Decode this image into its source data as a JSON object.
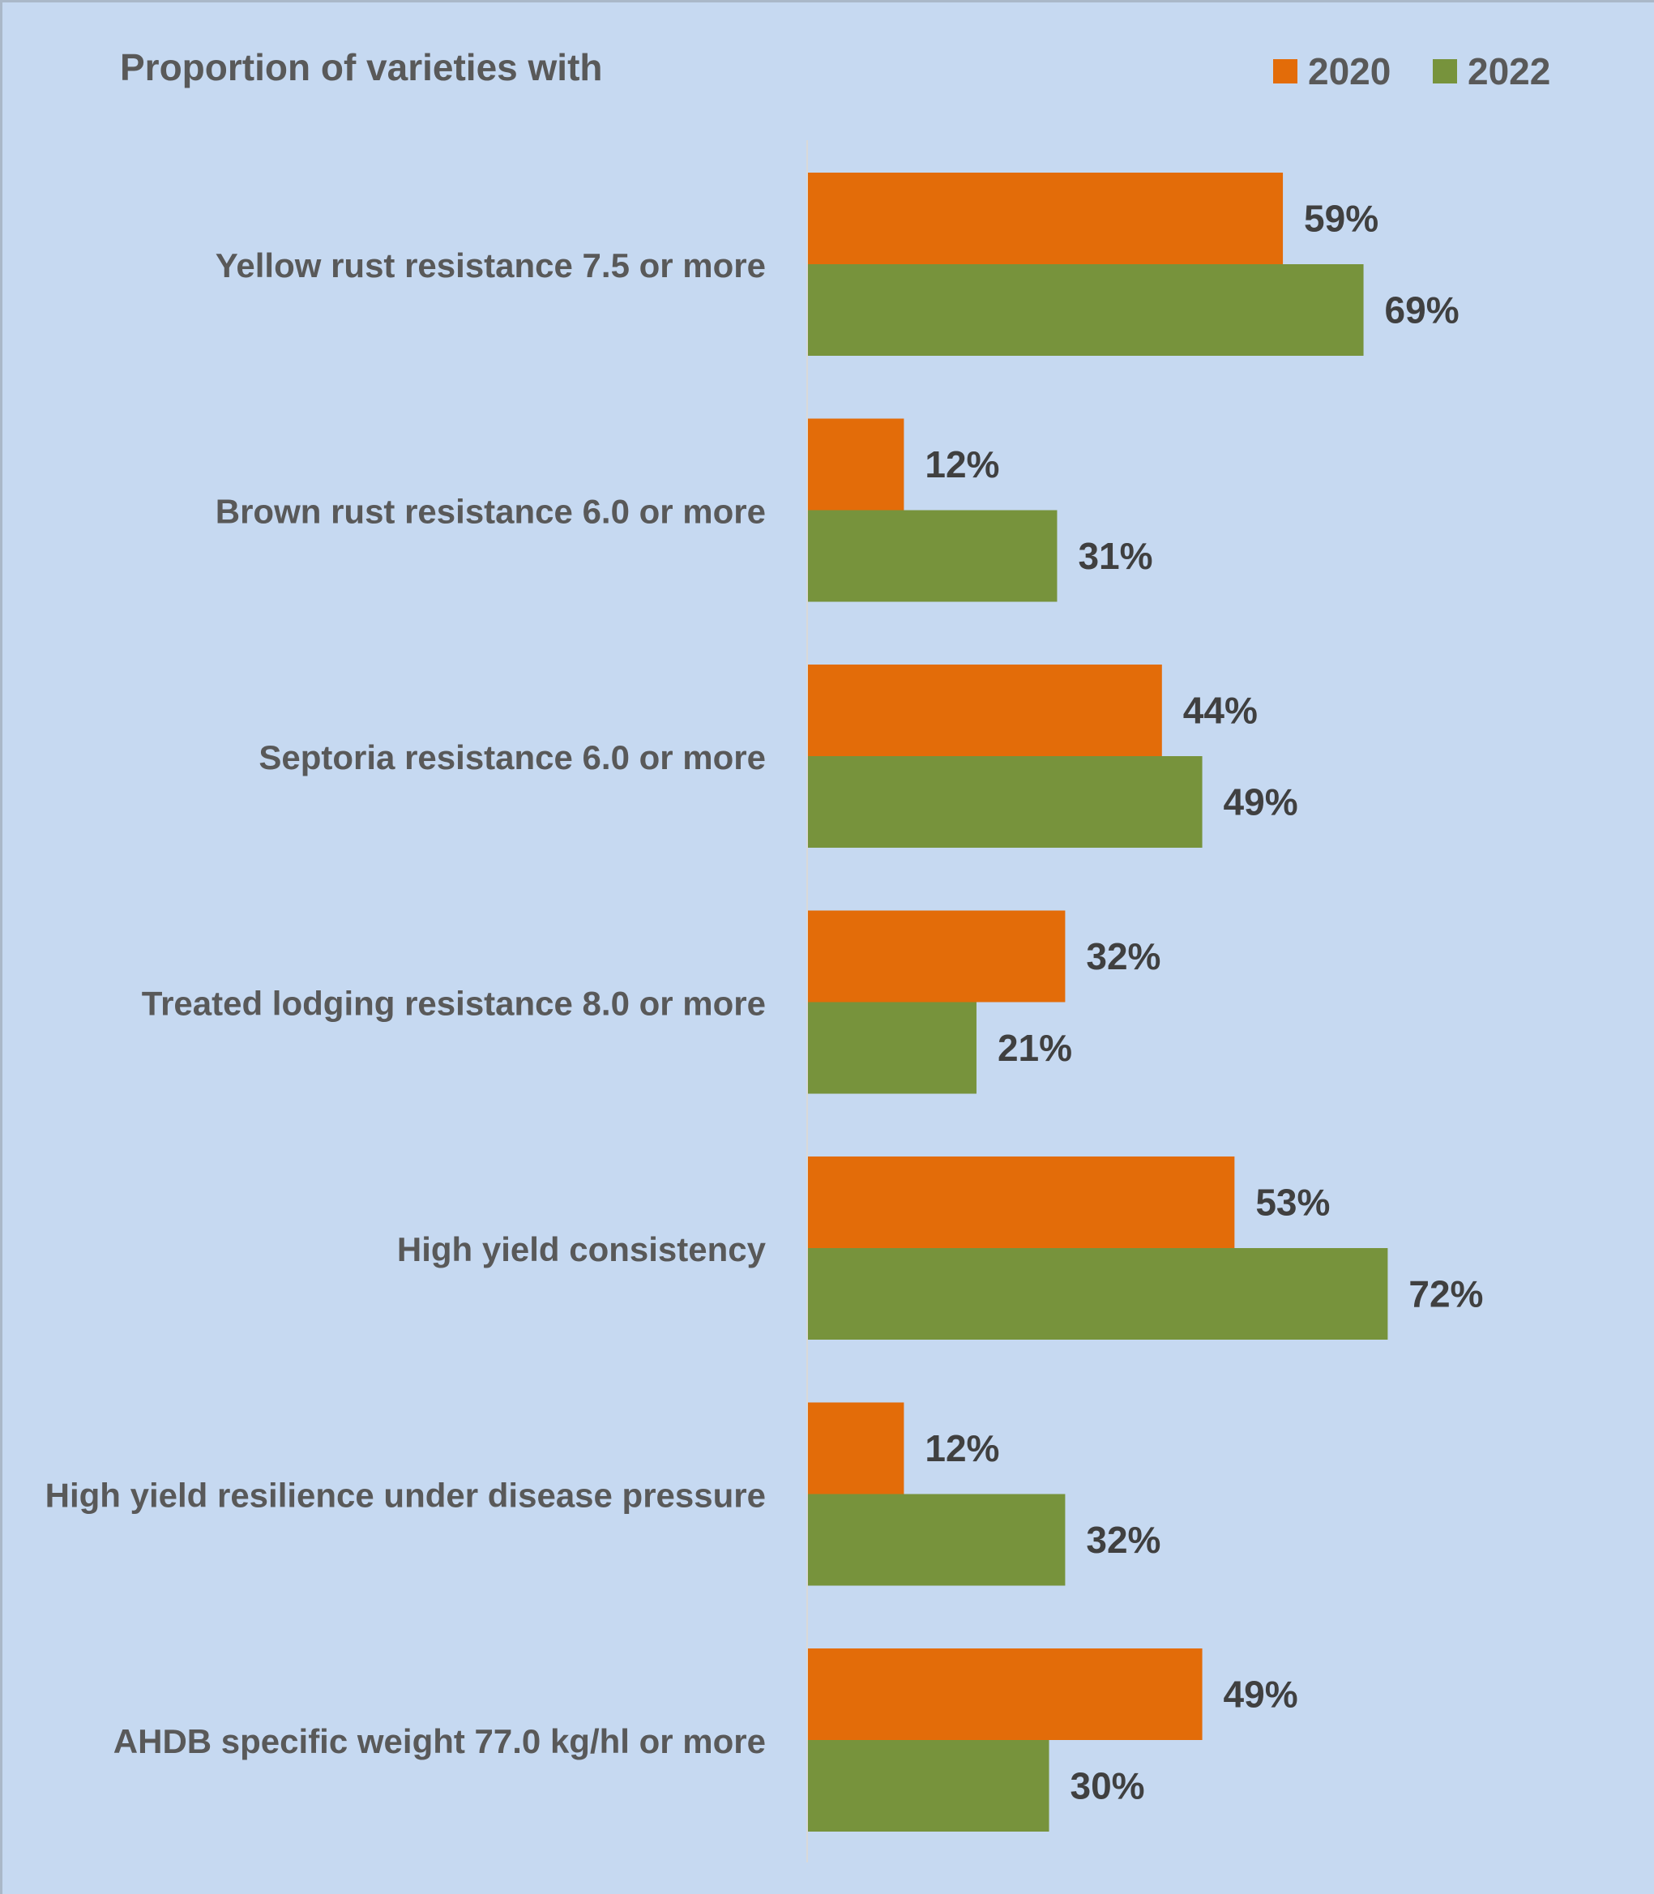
{
  "chart_data": {
    "type": "bar",
    "orientation": "horizontal",
    "title": "Proportion of varieties with",
    "categories": [
      "Yellow rust resistance 7.5 or more",
      "Brown rust resistance 6.0 or more",
      "Septoria resistance 6.0 or more",
      "Treated lodging resistance 8.0 or more",
      "High yield consistency",
      "High yield resilience under disease pressure",
      "AHDB specific weight 77.0 kg/hl or more"
    ],
    "series": [
      {
        "name": "2020",
        "color": "#e36c09",
        "values": [
          59,
          12,
          44,
          32,
          53,
          12,
          49
        ],
        "labels": [
          "59%",
          "12%",
          "44%",
          "32%",
          "53%",
          "12%",
          "49%"
        ]
      },
      {
        "name": "2022",
        "color": "#77933c",
        "values": [
          69,
          31,
          49,
          21,
          72,
          32,
          30
        ],
        "labels": [
          "69%",
          "31%",
          "49%",
          "21%",
          "72%",
          "32%",
          "30%"
        ]
      }
    ],
    "unit": "%",
    "legend_position": "top-right",
    "gridlines": false,
    "colors": {
      "background": "#c6d9f1",
      "text": "#595959",
      "value_label": "#404040",
      "axis": "#d9d9d9"
    }
  }
}
